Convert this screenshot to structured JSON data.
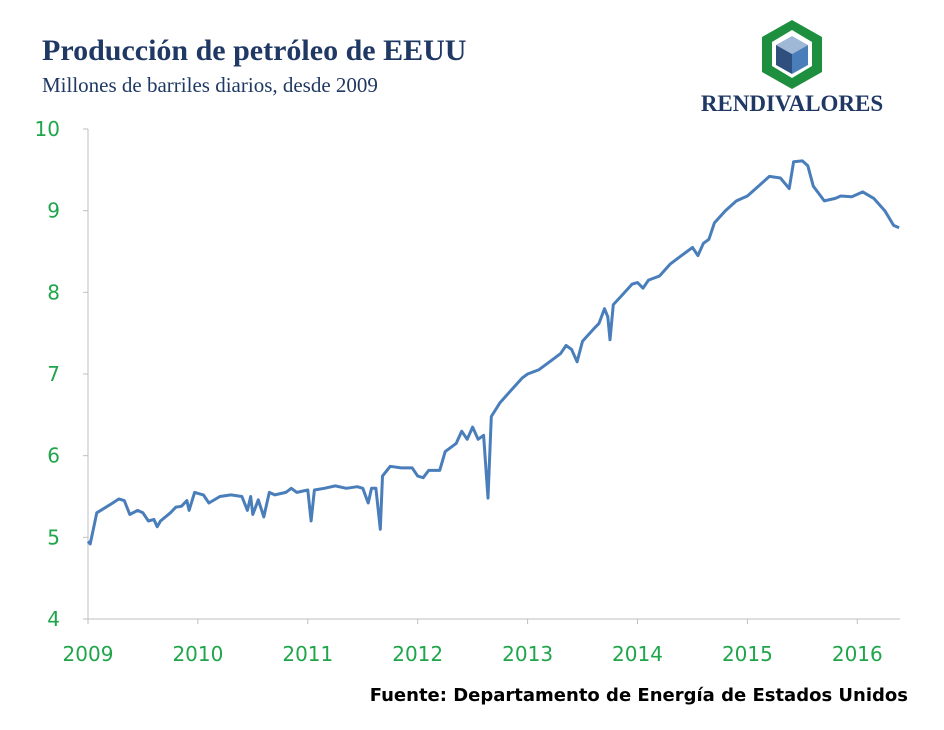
{
  "chart_data": {
    "type": "line",
    "title": "Producción de petróleo de EEUU",
    "subtitle": "Millones de barriles diarios, desde 2009",
    "logo": "RENDIVALORES",
    "source": "Fuente: Departamento de Energía de Estados Unidos",
    "x": [
      2009.0,
      2009.02,
      2009.08,
      2009.2,
      2009.28,
      2009.33,
      2009.38,
      2009.45,
      2009.5,
      2009.55,
      2009.6,
      2009.63,
      2009.66,
      2009.75,
      2009.8,
      2009.85,
      2009.9,
      2009.92,
      2009.97,
      2010.05,
      2010.1,
      2010.2,
      2010.3,
      2010.4,
      2010.45,
      2010.48,
      2010.5,
      2010.55,
      2010.6,
      2010.65,
      2010.7,
      2010.8,
      2010.85,
      2010.9,
      2011.0,
      2011.03,
      2011.06,
      2011.15,
      2011.25,
      2011.35,
      2011.45,
      2011.5,
      2011.55,
      2011.58,
      2011.62,
      2011.66,
      2011.68,
      2011.75,
      2011.85,
      2011.95,
      2012.0,
      2012.05,
      2012.1,
      2012.2,
      2012.25,
      2012.35,
      2012.4,
      2012.45,
      2012.5,
      2012.55,
      2012.6,
      2012.64,
      2012.67,
      2012.75,
      2012.85,
      2012.95,
      2013.0,
      2013.1,
      2013.2,
      2013.3,
      2013.35,
      2013.4,
      2013.45,
      2013.5,
      2013.6,
      2013.65,
      2013.7,
      2013.73,
      2013.75,
      2013.78,
      2013.85,
      2013.95,
      2014.0,
      2014.05,
      2014.1,
      2014.2,
      2014.3,
      2014.4,
      2014.5,
      2014.55,
      2014.6,
      2014.65,
      2014.7,
      2014.8,
      2014.9,
      2015.0,
      2015.1,
      2015.2,
      2015.3,
      2015.38,
      2015.42,
      2015.5,
      2015.55,
      2015.6,
      2015.7,
      2015.8,
      2015.85,
      2015.95,
      2016.05,
      2016.15,
      2016.25,
      2016.33,
      2016.38
    ],
    "series": [
      {
        "name": "Producción",
        "color": "#4a7ebb",
        "values": [
          4.95,
          4.92,
          5.3,
          5.4,
          5.47,
          5.45,
          5.28,
          5.33,
          5.3,
          5.2,
          5.22,
          5.13,
          5.2,
          5.3,
          5.37,
          5.38,
          5.45,
          5.33,
          5.55,
          5.52,
          5.42,
          5.5,
          5.52,
          5.5,
          5.33,
          5.5,
          5.28,
          5.46,
          5.25,
          5.55,
          5.52,
          5.55,
          5.6,
          5.55,
          5.58,
          5.2,
          5.58,
          5.6,
          5.63,
          5.6,
          5.62,
          5.6,
          5.42,
          5.6,
          5.6,
          5.1,
          5.75,
          5.87,
          5.85,
          5.85,
          5.75,
          5.73,
          5.82,
          5.82,
          6.05,
          6.15,
          6.3,
          6.2,
          6.35,
          6.2,
          6.25,
          5.48,
          6.48,
          6.65,
          6.8,
          6.95,
          7.0,
          7.05,
          7.15,
          7.25,
          7.35,
          7.3,
          7.15,
          7.4,
          7.55,
          7.62,
          7.8,
          7.7,
          7.42,
          7.85,
          7.95,
          8.1,
          8.12,
          8.05,
          8.15,
          8.2,
          8.35,
          8.45,
          8.55,
          8.45,
          8.6,
          8.65,
          8.85,
          9.0,
          9.12,
          9.18,
          9.3,
          9.42,
          9.4,
          9.27,
          9.6,
          9.61,
          9.55,
          9.3,
          9.12,
          9.15,
          9.18,
          9.17,
          9.23,
          9.15,
          9.0,
          8.82,
          8.79
        ]
      }
    ],
    "xlim": [
      2009,
      2016.4
    ],
    "xticks": [
      2009,
      2010,
      2011,
      2012,
      2013,
      2014,
      2015,
      2016
    ],
    "ylim": [
      4,
      10
    ],
    "yticks": [
      4,
      5,
      6,
      7,
      8,
      9,
      10
    ]
  }
}
